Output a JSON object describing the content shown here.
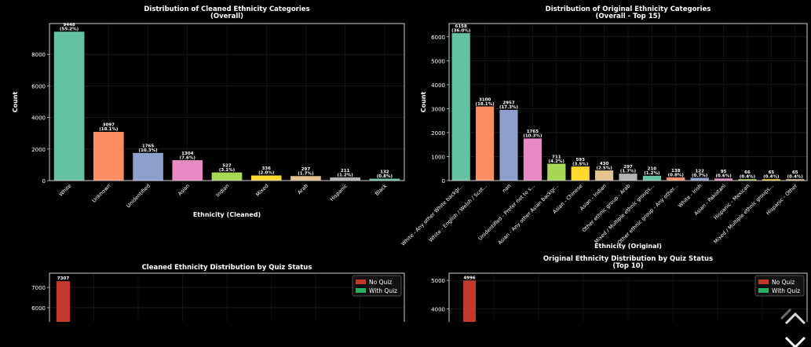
{
  "chart_data": [
    {
      "id": "cleaned",
      "type": "bar",
      "title": "Distribution of Cleaned Ethnicity Categories",
      "subtitle": "(Overall)",
      "xlabel": "Ethnicity (Cleaned)",
      "ylabel": "Count",
      "ylim": [
        0,
        9950
      ],
      "yticks": [
        0,
        2000,
        4000,
        6000,
        8000
      ],
      "grid": true,
      "categories": [
        "White",
        "Unknown",
        "Unidentified",
        "Asian",
        "Indian",
        "Mixed",
        "Arab",
        "Hispanic",
        "Black"
      ],
      "values": [
        9448,
        3097,
        1765,
        1304,
        527,
        336,
        297,
        211,
        132
      ],
      "value_labels": [
        "9448\n(55.2%)",
        "3097\n(18.1%)",
        "1765\n(10.3%)",
        "1304\n(7.6%)",
        "527\n(3.1%)",
        "336\n(2.0%)",
        "297\n(1.7%)",
        "211\n(1.2%)",
        "132\n(0.8%)"
      ],
      "colors": [
        "#66c2a5",
        "#fc8d62",
        "#8da0cb",
        "#e78ac3",
        "#a6d854",
        "#ffd92f",
        "#e5c494",
        "#b3b3b3",
        "#66c2a5"
      ]
    },
    {
      "id": "original",
      "type": "bar",
      "title": "Distribution of Original Ethnicity Categories",
      "subtitle": "(Overall - Top 15)",
      "xlabel": "Ethnicity (Original)",
      "ylabel": "Count",
      "ylim": [
        0,
        6550
      ],
      "yticks": [
        0,
        1000,
        2000,
        3000,
        4000,
        5000,
        6000
      ],
      "grid": true,
      "categories": [
        "White - Any other White backgr...",
        "White - English / Welsh / Scot...",
        "nan",
        "Unidentified - Prefer not to s...",
        "Asian - Any other Asian backgr...",
        "Asian - Chinese",
        "Asian - Indian",
        "Other ethnic group - Arab",
        "Mixed / Multiple ethnic groups...",
        "Other ethnic group - Any other...",
        "White - Irish",
        "Asian - Pakistani",
        "Hispanic - Mexican",
        "Mixed / Multiple ethnic groups...",
        "Hispanic - Other"
      ],
      "values": [
        6158,
        3100,
        2957,
        1765,
        711,
        593,
        430,
        297,
        210,
        138,
        122,
        95,
        66,
        65,
        65
      ],
      "value_labels": [
        "6158\n(36.0%)",
        "3100\n(18.1%)",
        "2957\n(17.3%)",
        "1765\n(10.3%)",
        "711\n(4.2%)",
        "593\n(3.5%)",
        "430\n(2.5%)",
        "297\n(1.7%)",
        "210\n(1.2%)",
        "138\n(0.8%)",
        "122\n(0.7%)",
        "95\n(0.6%)",
        "66\n(0.4%)",
        "65\n(0.4%)",
        "65\n(0.4%)"
      ],
      "colors": [
        "#66c2a5",
        "#fc8d62",
        "#8da0cb",
        "#e78ac3",
        "#a6d854",
        "#ffd92f",
        "#e5c494",
        "#b3b3b3",
        "#66c2a5",
        "#fc8d62",
        "#8da0cb",
        "#e78ac3",
        "#a6d854",
        "#ffd92f",
        "#e5c494"
      ]
    },
    {
      "id": "cleaned_quiz",
      "type": "bar",
      "title": "Cleaned Ethnicity Distribution by Quiz Status",
      "subtitle": "",
      "ylabel": "",
      "ylim": [
        5300,
        7700
      ],
      "yticks": [
        6000,
        7000
      ],
      "grid": true,
      "legend_position": "top-right",
      "series": [
        {
          "name": "No Quiz",
          "color": "#c0392b",
          "values": [
            7307
          ]
        },
        {
          "name": "With Quiz",
          "color": "#27ae60",
          "values": []
        }
      ],
      "value_labels": [
        "7307"
      ]
    },
    {
      "id": "original_quiz",
      "type": "bar",
      "title": "Original Ethnicity Distribution by Quiz Status",
      "subtitle": "(Top 10)",
      "ylabel": "",
      "ylim": [
        3550,
        5250
      ],
      "yticks": [
        4000,
        5000
      ],
      "grid": true,
      "legend_position": "top-right",
      "series": [
        {
          "name": "No Quiz",
          "color": "#c0392b",
          "values": [
            4996
          ]
        },
        {
          "name": "With Quiz",
          "color": "#27ae60",
          "values": []
        }
      ],
      "value_labels": [
        "4996"
      ]
    }
  ],
  "icons": {
    "nav": "chevron-icon"
  }
}
